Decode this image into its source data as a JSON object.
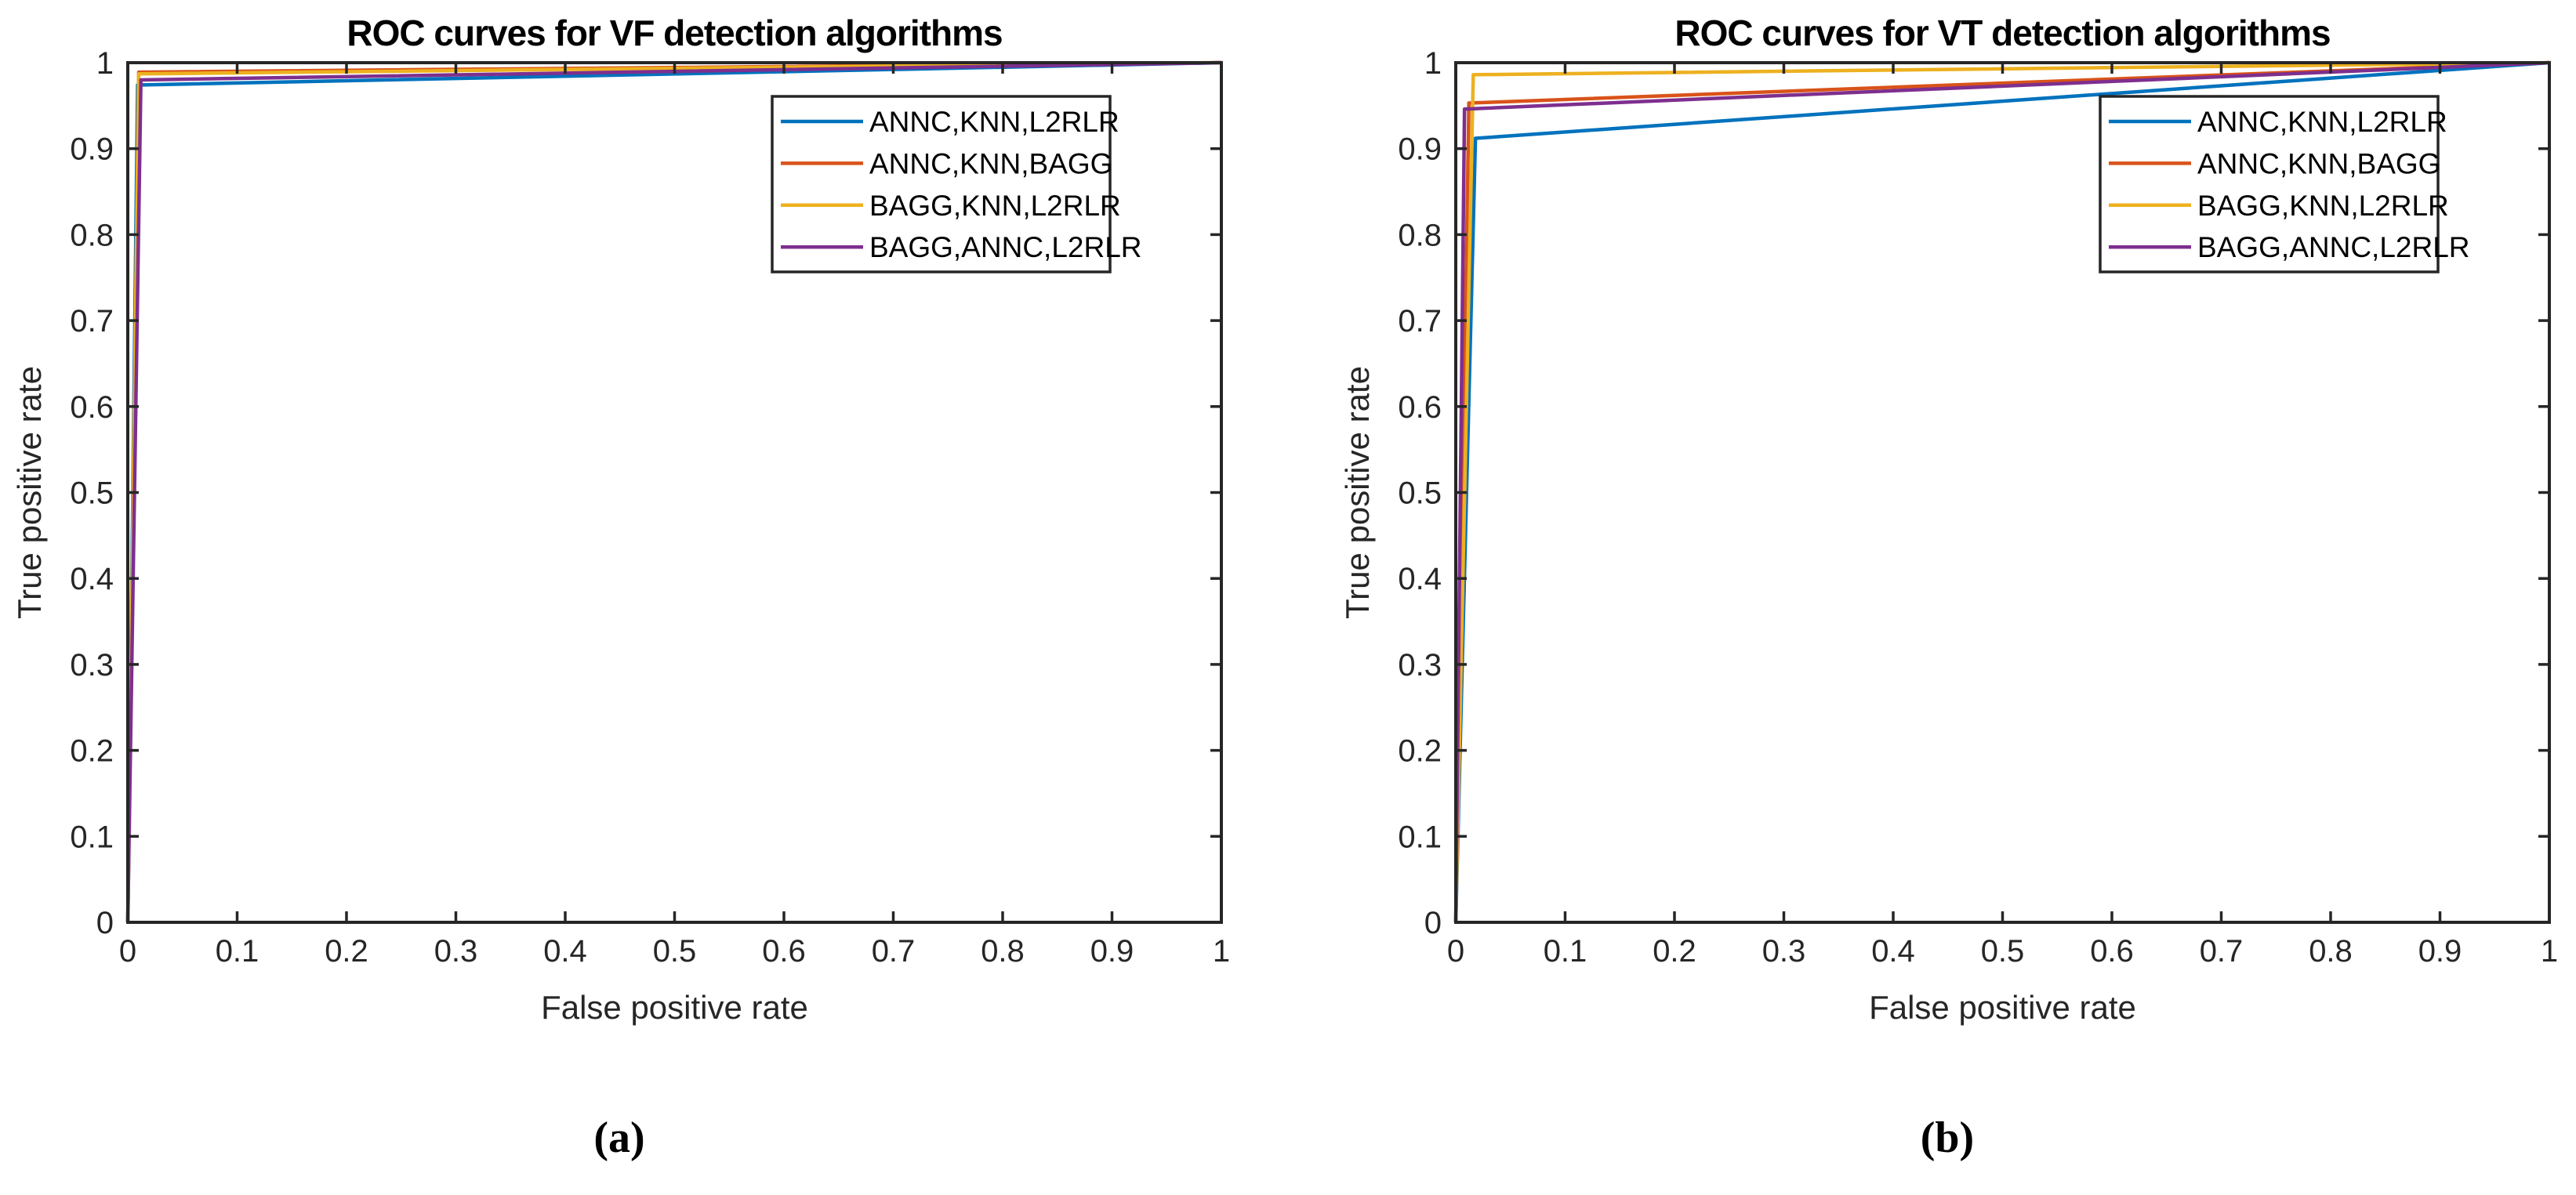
{
  "figure": {
    "background": "#ffffff",
    "axis_color": "#262626",
    "text_color": "#262626"
  },
  "chart_data": [
    {
      "type": "line",
      "title": "ROC curves for VF detection algorithms",
      "xlabel": "False positive rate",
      "ylabel": "True positive rate",
      "xlim": [
        0,
        1
      ],
      "ylim": [
        0,
        1
      ],
      "grid": false,
      "legend_position": "northeast",
      "xticks": [
        0,
        0.1,
        0.2,
        0.3,
        0.4,
        0.5,
        0.6,
        0.7,
        0.8,
        0.9,
        1
      ],
      "xtick_labels": [
        "0",
        "0.1",
        "0.2",
        "0.3",
        "0.4",
        "0.5",
        "0.6",
        "0.7",
        "0.8",
        "0.9",
        "1"
      ],
      "yticks": [
        0,
        0.1,
        0.2,
        0.3,
        0.4,
        0.5,
        0.6,
        0.7,
        0.8,
        0.9,
        1
      ],
      "ytick_labels": [
        "0",
        "0.1",
        "0.2",
        "0.3",
        "0.4",
        "0.5",
        "0.6",
        "0.7",
        "0.8",
        "0.9",
        "1"
      ],
      "series": [
        {
          "name": "ANNC,KNN,L2RLR",
          "color": "#0072BD",
          "points": [
            [
              0,
              0
            ],
            [
              0.009,
              0.974
            ],
            [
              1,
              1
            ]
          ]
        },
        {
          "name": "ANNC,KNN,BAGG",
          "color": "#D95319",
          "points": [
            [
              0,
              0
            ],
            [
              0.01,
              0.989
            ],
            [
              1,
              1
            ]
          ]
        },
        {
          "name": "BAGG,KNN,L2RLR",
          "color": "#EDB120",
          "points": [
            [
              0,
              0
            ],
            [
              0.01,
              0.987
            ],
            [
              1,
              1
            ]
          ]
        },
        {
          "name": "BAGG,ANNC,L2RLR",
          "color": "#7E2F8E",
          "points": [
            [
              0,
              0
            ],
            [
              0.012,
              0.98
            ],
            [
              1,
              1
            ]
          ]
        }
      ],
      "caption": "(a)"
    },
    {
      "type": "line",
      "title": "ROC curves for VT detection algorithms",
      "xlabel": "False positive rate",
      "ylabel": "True positive rate",
      "xlim": [
        0,
        1
      ],
      "ylim": [
        0,
        1
      ],
      "grid": false,
      "legend_position": "northeast",
      "xticks": [
        0,
        0.1,
        0.2,
        0.3,
        0.4,
        0.5,
        0.6,
        0.7,
        0.8,
        0.9,
        1
      ],
      "xtick_labels": [
        "0",
        "0.1",
        "0.2",
        "0.3",
        "0.4",
        "0.5",
        "0.6",
        "0.7",
        "0.8",
        "0.9",
        "1"
      ],
      "yticks": [
        0,
        0.1,
        0.2,
        0.3,
        0.4,
        0.5,
        0.6,
        0.7,
        0.8,
        0.9,
        1
      ],
      "ytick_labels": [
        "0",
        "0.1",
        "0.2",
        "0.3",
        "0.4",
        "0.5",
        "0.6",
        "0.7",
        "0.8",
        "0.9",
        "1"
      ],
      "series": [
        {
          "name": "ANNC,KNN,L2RLR",
          "color": "#0072BD",
          "points": [
            [
              0,
              0
            ],
            [
              0.018,
              0.912
            ],
            [
              1,
              1
            ]
          ]
        },
        {
          "name": "ANNC,KNN,BAGG",
          "color": "#D95319",
          "points": [
            [
              0,
              0
            ],
            [
              0.012,
              0.953
            ],
            [
              1,
              1
            ]
          ]
        },
        {
          "name": "BAGG,KNN,L2RLR",
          "color": "#EDB120",
          "points": [
            [
              0,
              0
            ],
            [
              0.016,
              0.986
            ],
            [
              1,
              1
            ]
          ]
        },
        {
          "name": "BAGG,ANNC,L2RLR",
          "color": "#7E2F8E",
          "points": [
            [
              0,
              0
            ],
            [
              0.008,
              0.946
            ],
            [
              1,
              1
            ]
          ]
        }
      ],
      "caption": "(b)"
    }
  ]
}
